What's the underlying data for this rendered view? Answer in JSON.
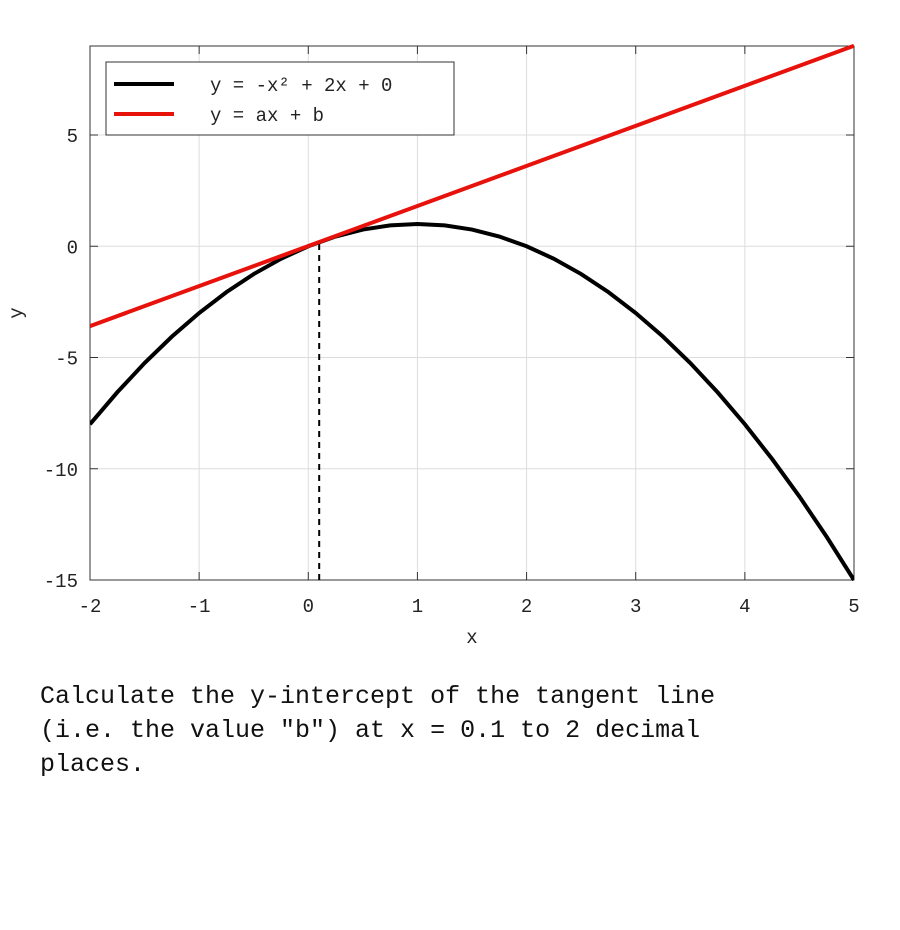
{
  "chart_data": {
    "type": "line",
    "xlabel": "x",
    "ylabel": "y",
    "xlim": [
      -2,
      5
    ],
    "ylim": [
      -15,
      9
    ],
    "xticks": [
      -2,
      -1,
      0,
      1,
      2,
      3,
      4,
      5
    ],
    "yticks": [
      -15,
      -10,
      -5,
      0,
      5
    ],
    "grid": true,
    "legend": "upper left",
    "series": [
      {
        "name": "y = -x² + 2x + 0",
        "color": "#000000",
        "x": [
          -2,
          -1.75,
          -1.5,
          -1.25,
          -1,
          -0.75,
          -0.5,
          -0.25,
          0,
          0.25,
          0.5,
          0.75,
          1,
          1.25,
          1.5,
          1.75,
          2,
          2.25,
          2.5,
          2.75,
          3,
          3.25,
          3.5,
          3.75,
          4,
          4.25,
          4.5,
          4.75,
          5
        ],
        "values": [
          -8,
          -6.5625,
          -5.25,
          -4.0625,
          -3,
          -2.0625,
          -1.25,
          -0.5625,
          0,
          0.4375,
          0.75,
          0.9375,
          1,
          0.9375,
          0.75,
          0.4375,
          0,
          -0.5625,
          -1.25,
          -2.0625,
          -3,
          -4.0625,
          -5.25,
          -6.5625,
          -8,
          -9.5625,
          -11.25,
          -13.0625,
          -15
        ]
      },
      {
        "name": "y = ax + b",
        "color": "#e8120c",
        "x": [
          -2,
          5
        ],
        "values": [
          -3.59,
          9.01
        ]
      }
    ],
    "tangent_point": {
      "x": 0.1,
      "y": 0.19
    }
  },
  "question": {
    "lines": [
      "Calculate the y-intercept of the tangent line",
      "(i.e. the value \"b\") at x = 0.1 to 2 decimal",
      "places."
    ]
  }
}
